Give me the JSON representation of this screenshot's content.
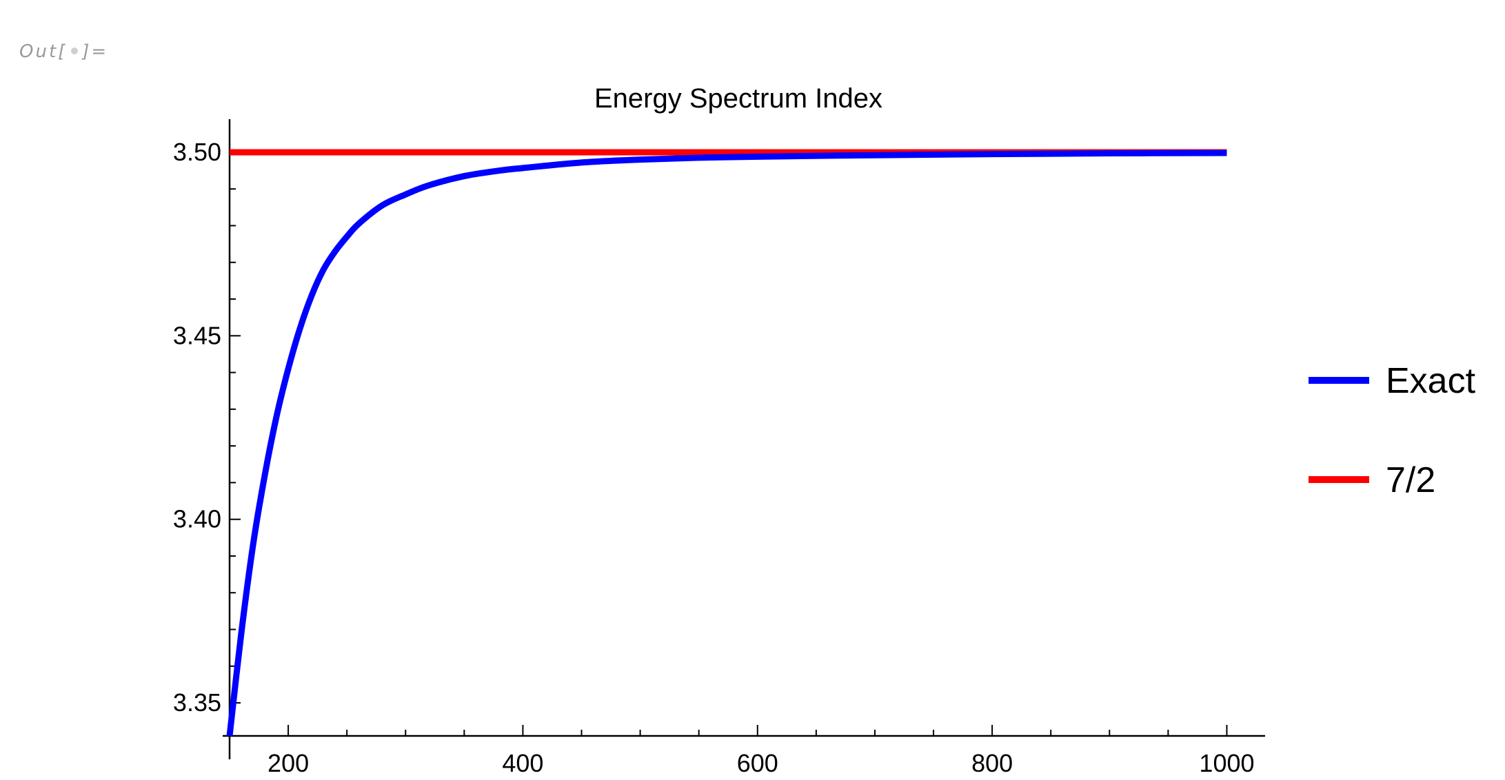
{
  "cell_label": {
    "prefix": "Out[",
    "suffix": "]="
  },
  "chart_data": {
    "type": "line",
    "title": "Energy Spectrum Index",
    "xlabel": "",
    "ylabel": "",
    "xlim": [
      150,
      1015
    ],
    "ylim": [
      3.341,
      3.509
    ],
    "grid": false,
    "legend_position": "right",
    "x_ticks": [
      200,
      400,
      600,
      800,
      1000
    ],
    "x_tick_labels": [
      "200",
      "400",
      "600",
      "800",
      "1000"
    ],
    "x_minor_ticks": [
      250,
      300,
      350,
      450,
      500,
      550,
      650,
      700,
      750,
      850,
      900,
      950
    ],
    "y_ticks": [
      3.35,
      3.4,
      3.45,
      3.5
    ],
    "y_tick_labels": [
      "3.35",
      "3.40",
      "3.45",
      "3.50"
    ],
    "y_minor_ticks": [
      3.36,
      3.37,
      3.38,
      3.39,
      3.41,
      3.42,
      3.43,
      3.44,
      3.46,
      3.47,
      3.48,
      3.49
    ],
    "series": [
      {
        "name": "Exact",
        "color": "#0000FF",
        "x": [
          150,
          160,
          170,
          180,
          190,
          200,
          210,
          220,
          230,
          240,
          250,
          260,
          280,
          300,
          320,
          350,
          380,
          400,
          450,
          500,
          550,
          600,
          700,
          800,
          900,
          1000
        ],
        "y": [
          3.341,
          3.369,
          3.393,
          3.412,
          3.428,
          3.441,
          3.452,
          3.461,
          3.468,
          3.473,
          3.477,
          3.4805,
          3.4855,
          3.4885,
          3.491,
          3.4935,
          3.495,
          3.4957,
          3.4972,
          3.498,
          3.4985,
          3.4988,
          3.4992,
          3.4995,
          3.4997,
          3.4998
        ]
      },
      {
        "name": "7/2",
        "color": "#FF0000",
        "x": [
          150,
          1000
        ],
        "y": [
          3.5,
          3.5
        ]
      }
    ]
  }
}
